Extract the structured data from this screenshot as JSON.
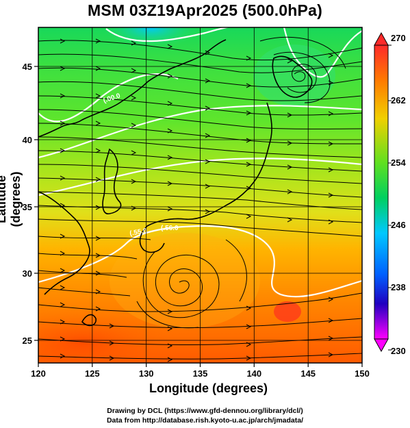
{
  "title": "MSM 03Z19Apr2025 (500.0hPa)",
  "x_axis": {
    "label": "Longitude (degrees)",
    "range": [
      120,
      150
    ],
    "ticks": [
      "120",
      "125",
      "130",
      "135",
      "140",
      "145",
      "150"
    ]
  },
  "y_axis": {
    "label": "Latitude  (degrees)",
    "range": [
      22.5,
      47.6
    ],
    "ticks": [
      "25",
      "30",
      "35",
      "40",
      "45"
    ]
  },
  "colorbar": {
    "range": [
      230,
      270
    ],
    "ticks": [
      "270",
      "262",
      "254",
      "246",
      "238",
      "230"
    ]
  },
  "contour_labels": [
    "(.00.0",
    "(.55.0",
    "(.56.0"
  ],
  "credits": [
    "Drawing by DCL (https://www.gfd-dennou.org/library/dcl/)",
    "Data from http://database.rish.kyoto-u.ac.jp/arch/jmadata/"
  ],
  "colors": {
    "cold": "#00b4ff",
    "mid": "#20e040",
    "warm": "#ff8c00",
    "hot": "#ff2a00"
  }
}
